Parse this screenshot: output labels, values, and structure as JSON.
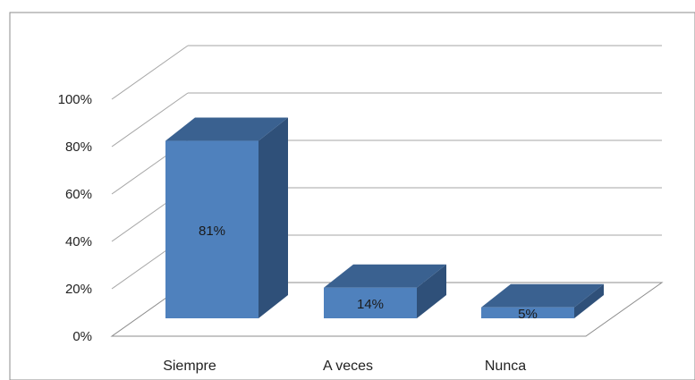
{
  "chart_data": {
    "type": "bar",
    "categories": [
      "Siempre",
      "A veces",
      "Nunca"
    ],
    "values": [
      81,
      14,
      5
    ],
    "data_labels": [
      "81%",
      "14%",
      "5%"
    ],
    "title": "",
    "xlabel": "",
    "ylabel": "",
    "ylim": [
      0,
      100
    ],
    "y_ticks": [
      "0%",
      "20%",
      "40%",
      "60%",
      "80%",
      "100%"
    ],
    "grid": true,
    "legend": "none",
    "style": "3d-column",
    "colors": {
      "front": "#4f81bd",
      "top": "#3a6190",
      "side": "#2f5079",
      "grid": "#a6a6a6",
      "frame": "#8c8c8c"
    }
  }
}
